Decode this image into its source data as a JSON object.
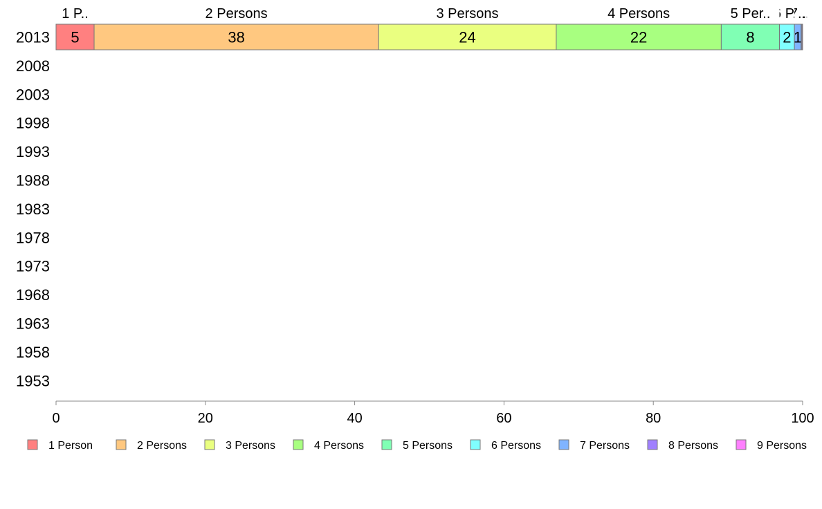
{
  "chart_data": {
    "type": "bar",
    "orientation": "horizontal",
    "stacked": true,
    "categories": [
      "2013",
      "2008",
      "2003",
      "1998",
      "1993",
      "1988",
      "1983",
      "1978",
      "1973",
      "1968",
      "1963",
      "1958",
      "1953"
    ],
    "series": [
      {
        "name": "1 Person",
        "header": "1 P..",
        "color": "#ff8080",
        "values": [
          5.1,
          null,
          null,
          null,
          null,
          null,
          null,
          null,
          null,
          null,
          null,
          null,
          null
        ],
        "labels": [
          "5",
          "",
          "",
          "",
          "",
          "",
          "",
          "",
          "",
          "",
          "",
          "",
          ""
        ]
      },
      {
        "name": "2 Persons",
        "header": "2 Persons",
        "color": "#ffc880",
        "values": [
          38.1,
          null,
          null,
          null,
          null,
          null,
          null,
          null,
          null,
          null,
          null,
          null,
          null
        ],
        "labels": [
          "38",
          "",
          "",
          "",
          "",
          "",
          "",
          "",
          "",
          "",
          "",
          "",
          ""
        ]
      },
      {
        "name": "3 Persons",
        "header": "3 Persons",
        "color": "#eaff80",
        "values": [
          23.8,
          null,
          null,
          null,
          null,
          null,
          null,
          null,
          null,
          null,
          null,
          null,
          null
        ],
        "labels": [
          "24",
          "",
          "",
          "",
          "",
          "",
          "",
          "",
          "",
          "",
          "",
          "",
          ""
        ]
      },
      {
        "name": "4 Persons",
        "header": "4 Persons",
        "color": "#a8ff80",
        "values": [
          22.1,
          null,
          null,
          null,
          null,
          null,
          null,
          null,
          null,
          null,
          null,
          null,
          null
        ],
        "labels": [
          "22",
          "",
          "",
          "",
          "",
          "",
          "",
          "",
          "",
          "",
          "",
          "",
          ""
        ]
      },
      {
        "name": "5 Persons",
        "header": "5 Per..",
        "color": "#80ffb4",
        "values": [
          7.8,
          null,
          null,
          null,
          null,
          null,
          null,
          null,
          null,
          null,
          null,
          null,
          null
        ],
        "labels": [
          "8",
          "",
          "",
          "",
          "",
          "",
          "",
          "",
          "",
          "",
          "",
          "",
          ""
        ]
      },
      {
        "name": "6 Persons",
        "header": "6 P..",
        "color": "#80ffff",
        "values": [
          2.0,
          null,
          null,
          null,
          null,
          null,
          null,
          null,
          null,
          null,
          null,
          null,
          null
        ],
        "labels": [
          "2",
          "",
          "",
          "",
          "",
          "",
          "",
          "",
          "",
          "",
          "",
          "",
          ""
        ]
      },
      {
        "name": "7 Persons",
        "header": "7..",
        "color": "#80b4ff",
        "values": [
          0.9,
          null,
          null,
          null,
          null,
          null,
          null,
          null,
          null,
          null,
          null,
          null,
          null
        ],
        "labels": [
          "1",
          "",
          "",
          "",
          "",
          "",
          "",
          "",
          "",
          "",
          "",
          "",
          ""
        ]
      },
      {
        "name": "8 Persons",
        "header": "8..",
        "color": "#a080ff",
        "values": [
          0.1,
          null,
          null,
          null,
          null,
          null,
          null,
          null,
          null,
          null,
          null,
          null,
          null
        ],
        "labels": [
          "",
          "",
          "",
          "",
          "",
          "",
          "",
          "",
          "",
          "",
          "",
          "",
          ""
        ]
      },
      {
        "name": "9 Persons",
        "header": "9..",
        "color": "#ff80ff",
        "values": [
          0.1,
          null,
          null,
          null,
          null,
          null,
          null,
          null,
          null,
          null,
          null,
          null,
          null
        ],
        "labels": [
          "",
          "",
          "",
          "",
          "",
          "",
          "",
          "",
          "",
          "",
          "",
          "",
          ""
        ]
      }
    ],
    "xlim": [
      0,
      100
    ],
    "xticks": [
      "0",
      "20",
      "40",
      "60",
      "80",
      "100"
    ],
    "grid": false,
    "legend_position": "bottom",
    "title": "",
    "xlabel": "",
    "ylabel": ""
  }
}
